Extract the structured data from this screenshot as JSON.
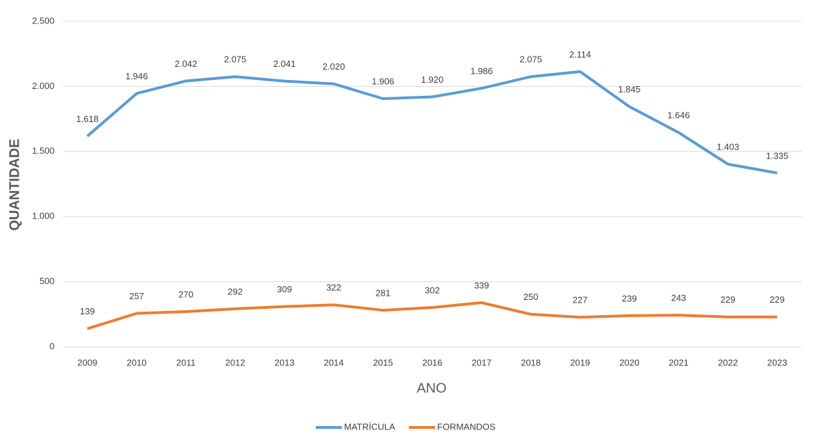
{
  "chart_data": {
    "type": "line",
    "x_label": "ANO",
    "y_label": "QUANTIDADE",
    "categories": [
      "2009",
      "2010",
      "2011",
      "2012",
      "2013",
      "2014",
      "2015",
      "2016",
      "2017",
      "2018",
      "2019",
      "2020",
      "2021",
      "2022",
      "2023"
    ],
    "series": [
      {
        "name": "MATRÍCULA",
        "color": "#5b9bd5",
        "values": [
          1618,
          1946,
          2042,
          2075,
          2041,
          2020,
          1906,
          1920,
          1986,
          2075,
          2114,
          1845,
          1646,
          1403,
          1335
        ],
        "value_labels": [
          "1.618",
          "1.946",
          "2.042",
          "2.075",
          "2.041",
          "2.020",
          "1.906",
          "1.920",
          "1.986",
          "2.075",
          "2.114",
          "1.845",
          "1.646",
          "1.403",
          "1.335"
        ]
      },
      {
        "name": "FORMANDOS",
        "color": "#ed7d31",
        "values": [
          139,
          257,
          270,
          292,
          309,
          322,
          281,
          302,
          339,
          250,
          227,
          239,
          243,
          229,
          229
        ]
      }
    ],
    "ylim": [
      0,
      2500
    ],
    "yticks": [
      0,
      500,
      {
        "value": 1000,
        "label": "1.000"
      },
      {
        "value": 1500,
        "label": "1.500"
      },
      {
        "value": 2000,
        "label": "2.000"
      },
      {
        "value": 2500,
        "label": "2.500"
      }
    ],
    "grid": true,
    "legend": "bottom"
  }
}
